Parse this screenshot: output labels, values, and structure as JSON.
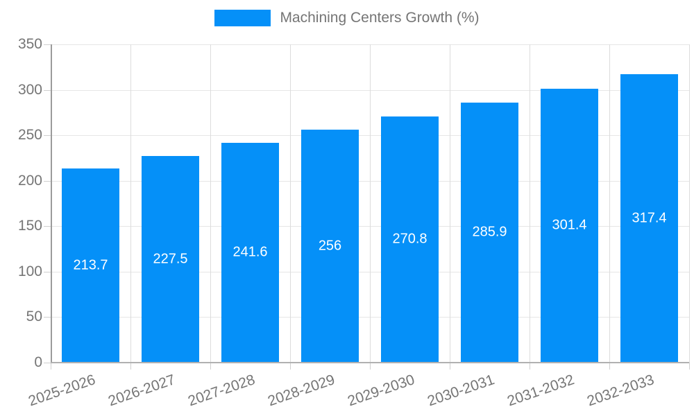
{
  "chart_data": {
    "type": "bar",
    "title": "Machining Centers Growth (%)",
    "legend": {
      "label": "Machining Centers Growth (%)",
      "position": "top"
    },
    "categories": [
      "2025-2026",
      "2026-2027",
      "2027-2028",
      "2028-2029",
      "2029-2030",
      "2030-2031",
      "2031-2032",
      "2032-2033"
    ],
    "series": [
      {
        "name": "Machining Centers Growth (%)",
        "values": [
          213.7,
          227.5,
          241.6,
          256,
          270.8,
          285.9,
          301.4,
          317.4
        ]
      }
    ],
    "value_labels": [
      "213.7",
      "227.5",
      "241.6",
      "256",
      "270.8",
      "285.9",
      "301.4",
      "317.4"
    ],
    "xlabel": "",
    "ylabel": "",
    "ylim": [
      0,
      350
    ],
    "yticks": [
      0,
      50,
      100,
      150,
      200,
      250,
      300,
      350
    ],
    "grid": true,
    "colors": {
      "bar": "#0590f8",
      "grid_h": "#e6e6e6",
      "grid_v": "#dcdcdc",
      "axis": "#9b9b9b",
      "text": "#757575",
      "value_text": "#ffffff",
      "background": "#ffffff"
    }
  }
}
